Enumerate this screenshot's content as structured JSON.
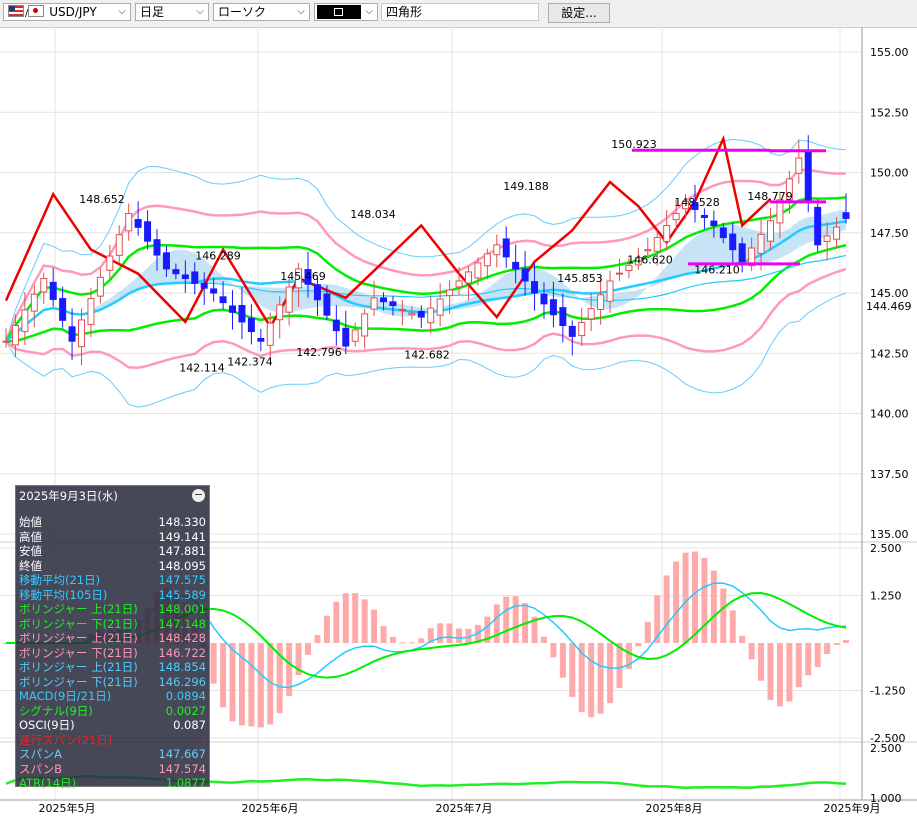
{
  "toolbar": {
    "symbol": "USD/JPY",
    "interval": "日足",
    "chart_type": "ローソク",
    "draw_tool": "四角形",
    "settings_label": "設定..."
  },
  "icons": {
    "symbol": "us-jp-flag-icon",
    "dropdown": "chevron-down-icon",
    "color_swatch": "color-swatch-icon",
    "collapse": "minus-circle-icon"
  },
  "colors": {
    "up_candle": "#e05050",
    "down_candle": "#1a1aff",
    "ma21": "#22ccff",
    "bollinger_21": "#00ee00",
    "bollinger_outer": "#ff99bb",
    "bollinger_outer2": "#66ccff",
    "span_line": "#ee0000",
    "cloud": "#99ccee",
    "cloud_pink": "#ffccdd",
    "range_box": "#ee00ee",
    "atr": "#22ee22"
  },
  "info_panel": {
    "date": "2025年9月3日(水)",
    "rows": [
      {
        "label": "始値",
        "value": "148.330",
        "color": "#ffffff"
      },
      {
        "label": "高値",
        "value": "149.141",
        "color": "#ffffff"
      },
      {
        "label": "安値",
        "value": "147.881",
        "color": "#ffffff"
      },
      {
        "label": "終値",
        "value": "148.095",
        "color": "#ffffff"
      },
      {
        "label": "移動平均(21日)",
        "value": "147.575",
        "color": "#33ccff"
      },
      {
        "label": "移動平均(105日)",
        "value": "145.589",
        "color": "#33ccff"
      },
      {
        "label": "ボリンジャー 上(21日)",
        "value": "148.001",
        "color": "#22ee22"
      },
      {
        "label": "ボリンジャー 下(21日)",
        "value": "147.148",
        "color": "#22ee22"
      },
      {
        "label": "ボリンジャー 上(21日)",
        "value": "148.428",
        "color": "#ff99bb"
      },
      {
        "label": "ボリンジャー 下(21日)",
        "value": "146.722",
        "color": "#ff99bb"
      },
      {
        "label": "ボリンジャー 上(21日)",
        "value": "148.854",
        "color": "#55ccff"
      },
      {
        "label": "ボリンジャー 下(21日)",
        "value": "146.296",
        "color": "#55ccff"
      },
      {
        "label": "MACD(9日/21日)",
        "value": "0.0894",
        "color": "#33ccff"
      },
      {
        "label": "シグナル(9日)",
        "value": "0.0027",
        "color": "#22ee22"
      },
      {
        "label": "OSCI(9日)",
        "value": "0.087",
        "color": "#ffffff"
      },
      {
        "label": "遅行スパン(21日)",
        "value": "-",
        "color": "#ee2222"
      },
      {
        "label": "スパンA",
        "value": "147.667",
        "color": "#66ccff"
      },
      {
        "label": "スパンB",
        "value": "147.574",
        "color": "#ff99bb"
      },
      {
        "label": "ATR(14日)",
        "value": "1.0877",
        "color": "#22ee22"
      }
    ]
  },
  "chart_data": [
    {
      "type": "candlestick",
      "title": "USD/JPY 日足",
      "y_ticks": [
        "155.00",
        "152.50",
        "150.00",
        "147.50",
        "145.00",
        "142.50",
        "140.00",
        "137.50",
        "135.00"
      ],
      "ylim": [
        135.0,
        155.0
      ],
      "current_price_label": "144.469",
      "x_ticks": [
        "2025年5月",
        "2025年6月",
        "2025年7月",
        "2025年8月",
        "2025年9月"
      ],
      "annotations": [
        "148.652",
        "146.289",
        "145.469",
        "148.034",
        "142.114",
        "142.374",
        "142.796",
        "142.682",
        "149.188",
        "145.853",
        "150.923",
        "146.620",
        "148.528",
        "148.779",
        "146.210"
      ],
      "range_box": {
        "top": 148.779,
        "bottom": 146.21
      },
      "last_candle": {
        "date": "2025年9月3日(水)",
        "open": 148.33,
        "high": 149.141,
        "low": 147.881,
        "close": 148.095
      }
    },
    {
      "type": "line",
      "title": "MACD",
      "y_ticks": [
        "2.500",
        "1.250",
        "-1.250",
        "-2.500"
      ],
      "ylim": [
        -2.5,
        2.5
      ],
      "series": [
        {
          "name": "MACD(9日/21日)",
          "last": 0.0894
        },
        {
          "name": "シグナル(9日)",
          "last": 0.0027
        },
        {
          "name": "OSCI(9日)",
          "last": 0.087
        }
      ]
    },
    {
      "type": "line",
      "title": "ATR",
      "y_ticks": [
        "2.500",
        "1.000"
      ],
      "ylim": [
        1.0,
        2.5
      ],
      "series": [
        {
          "name": "ATR(14日)",
          "last": 1.0877
        }
      ]
    }
  ]
}
